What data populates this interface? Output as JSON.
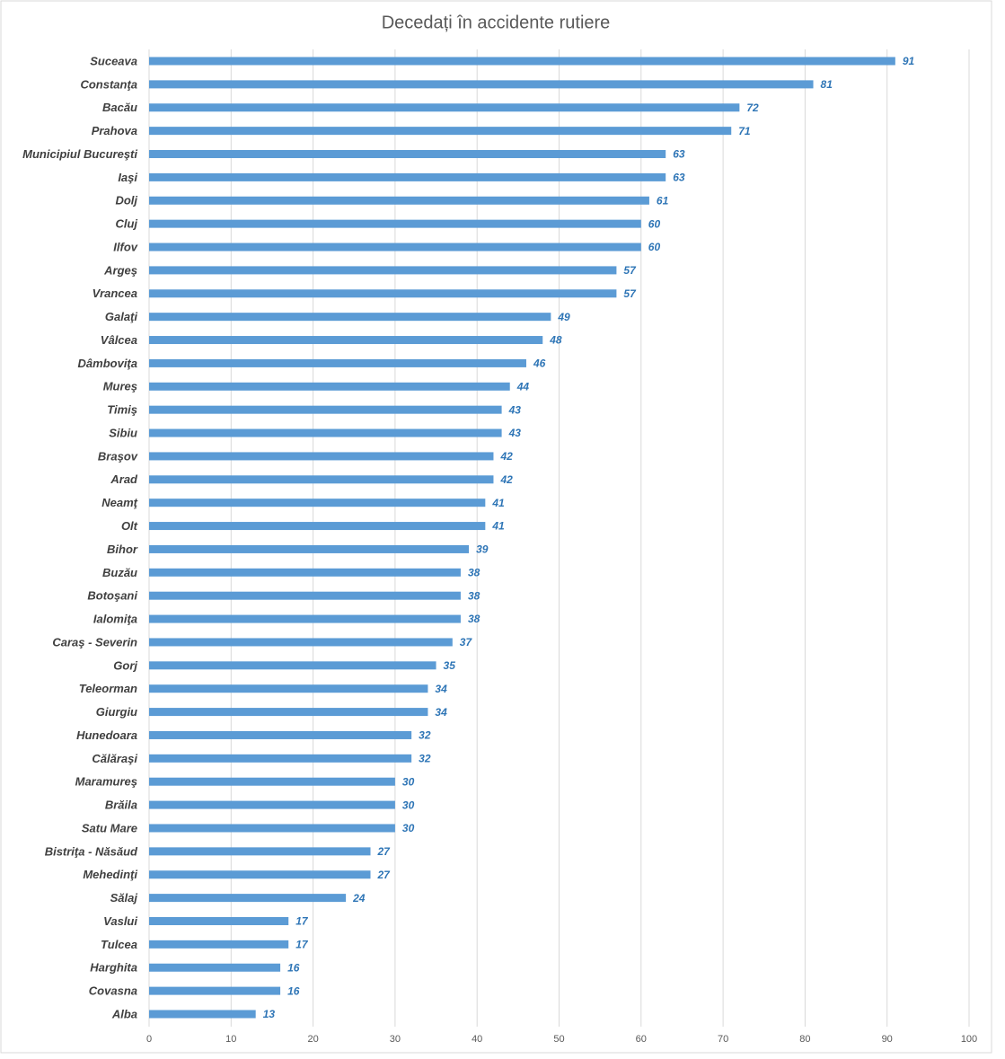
{
  "chart_data": {
    "type": "bar",
    "orientation": "horizontal",
    "title": "Decedați în accidente rutiere",
    "categories": [
      "Suceava",
      "Constanţa",
      "Bacău",
      "Prahova",
      "Municipiul Bucureşti",
      "Iaşi",
      "Dolj",
      "Cluj",
      "Ilfov",
      "Argeş",
      "Vrancea",
      "Galaţi",
      "Vâlcea",
      "Dâmboviţa",
      "Mureş",
      "Timiş",
      "Sibiu",
      "Braşov",
      "Arad",
      "Neamţ",
      "Olt",
      "Bihor",
      "Buzău",
      "Botoşani",
      "Ialomiţa",
      "Caraş - Severin",
      "Gorj",
      "Teleorman",
      "Giurgiu",
      "Hunedoara",
      "Călăraşi",
      "Maramureş",
      "Brăila",
      "Satu Mare",
      "Bistriţa - Năsăud",
      "Mehedinţi",
      "Sălaj",
      "Vaslui",
      "Tulcea",
      "Harghita",
      "Covasna",
      "Alba"
    ],
    "values": [
      91,
      81,
      72,
      71,
      63,
      63,
      61,
      60,
      60,
      57,
      57,
      49,
      48,
      46,
      44,
      43,
      43,
      42,
      42,
      41,
      41,
      39,
      38,
      38,
      38,
      37,
      35,
      34,
      34,
      32,
      32,
      30,
      30,
      30,
      27,
      27,
      24,
      17,
      17,
      16,
      16,
      13
    ],
    "color": "#5b9bd5",
    "xlim": [
      0,
      100
    ],
    "xticks": [
      0,
      10,
      20,
      30,
      40,
      50,
      60,
      70,
      80,
      90,
      100
    ],
    "grid": true
  }
}
